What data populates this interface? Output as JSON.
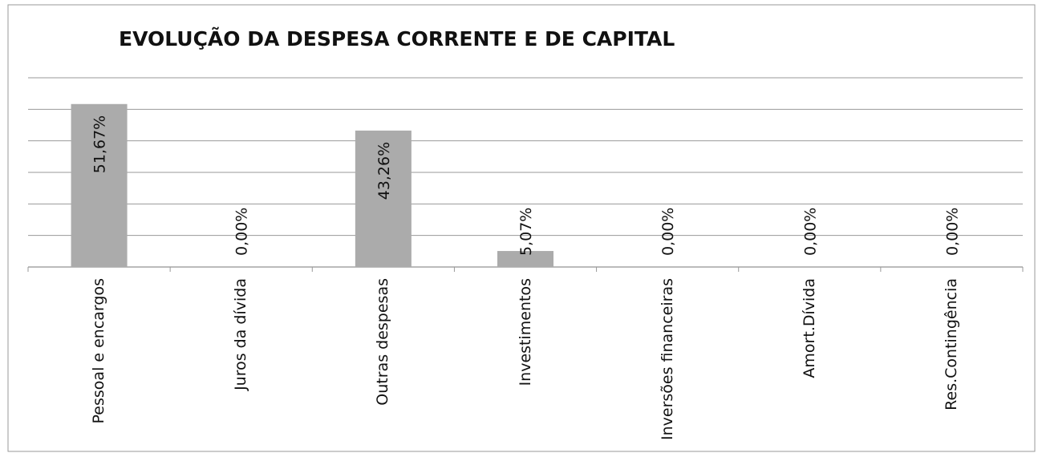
{
  "chart_data": {
    "type": "bar",
    "title": "EVOLUÇÃO DA DESPESA CORRENTE E DE CAPITAL",
    "categories": [
      "Pessoal e encargos",
      "Juros da dívida",
      "Outras despesas",
      "Investimentos",
      "Inversões financeiras",
      "Amort.Dívida",
      "Res.Contingência"
    ],
    "values": [
      51.67,
      0,
      43.26,
      5.07,
      0,
      0,
      0
    ],
    "value_labels": [
      "51,67%",
      "0,00%",
      "43,26%",
      "5,07%",
      "0,00%",
      "0,00%",
      "0,00%"
    ],
    "color": "#ababab",
    "ylim": [
      0,
      60
    ],
    "yticks": [
      0,
      10,
      20,
      30,
      40,
      50,
      60
    ],
    "grid": true
  }
}
